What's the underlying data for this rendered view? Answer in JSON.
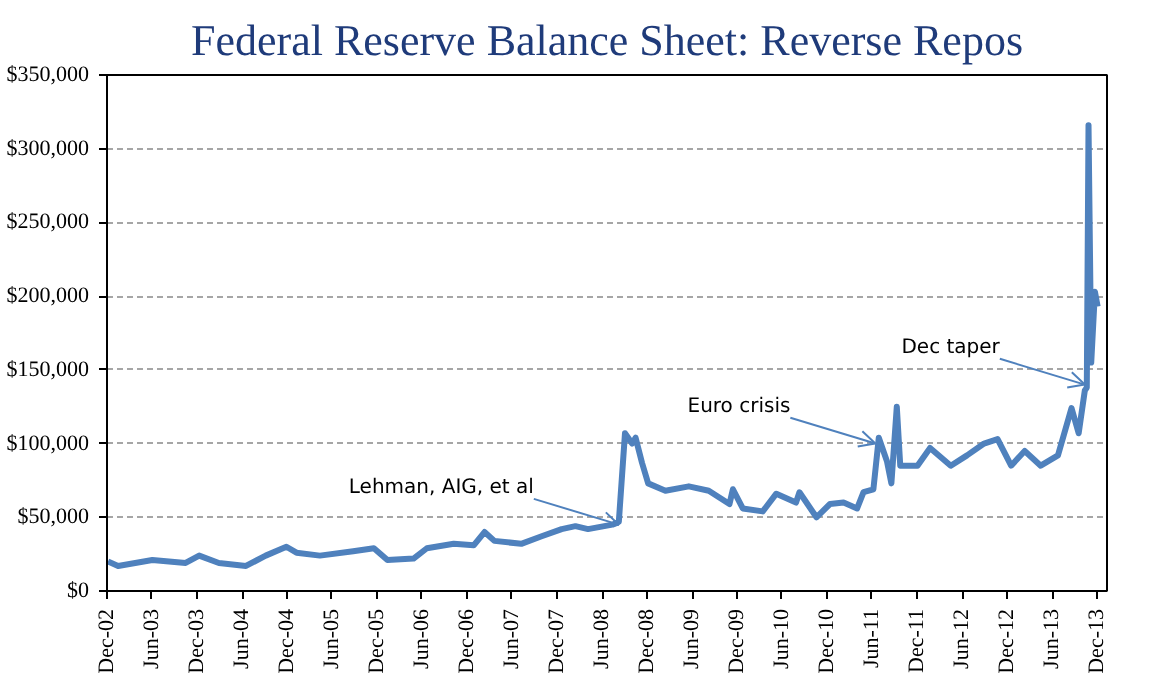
{
  "chart_data": {
    "type": "line",
    "title": "Federal Reserve Balance Sheet: Reverse Repos",
    "x": [
      "2002-12-05",
      "2003-01-15",
      "2003-06-03",
      "2003-10-16",
      "2003-12-10",
      "2004-02-28",
      "2004-06-17",
      "2004-09-05",
      "2004-11-28",
      "2005-01-08",
      "2005-04-13",
      "2005-08-26",
      "2005-11-18",
      "2006-01-12",
      "2006-04-28",
      "2006-06-21",
      "2006-10-08",
      "2006-12-28",
      "2007-02-10",
      "2007-03-22",
      "2007-07-09",
      "2007-09-27",
      "2007-12-20",
      "2008-02-14",
      "2008-04-05",
      "2008-07-13",
      "2008-08-08",
      "2008-09-02",
      "2008-10-01",
      "2008-10-15",
      "2008-11-10",
      "2008-12-05",
      "2009-02-13",
      "2009-05-19",
      "2009-08-08",
      "2009-10-31",
      "2009-11-14",
      "2009-12-24",
      "2010-03-15",
      "2010-05-09",
      "2010-07-28",
      "2010-08-11",
      "2010-10-19",
      "2010-12-13",
      "2011-02-06",
      "2011-04-02",
      "2011-04-28",
      "2011-06-07",
      "2011-06-29",
      "2011-08-01",
      "2011-08-19",
      "2011-09-10",
      "2011-09-24",
      "2011-12-03",
      "2012-01-23",
      "2012-04-16",
      "2012-06-21",
      "2012-08-29",
      "2012-10-23",
      "2012-12-17",
      "2013-02-10",
      "2013-04-16",
      "2013-06-25",
      "2013-08-19",
      "2013-09-17",
      "2013-10-12",
      "2013-10-20",
      "2013-10-27",
      "2013-11-07",
      "2013-11-22",
      "2013-12-03"
    ],
    "series": [
      {
        "color": "#4f81bd",
        "values": [
          20000,
          17000,
          21000,
          19000,
          24000,
          19000,
          17000,
          24000,
          30000,
          26000,
          24000,
          27000,
          29000,
          21000,
          22000,
          29000,
          32000,
          31000,
          40000,
          34000,
          32000,
          37000,
          42000,
          44000,
          42000,
          45000,
          47000,
          107000,
          100000,
          104000,
          87000,
          73000,
          68000,
          71000,
          68000,
          59000,
          69000,
          56000,
          54000,
          66000,
          60000,
          67000,
          50000,
          59000,
          60000,
          56000,
          67000,
          69000,
          104000,
          88000,
          73000,
          125000,
          85000,
          85000,
          97000,
          85000,
          92000,
          100000,
          103000,
          85000,
          95000,
          85000,
          92000,
          124000,
          107000,
          136000,
          138000,
          316000,
          155000,
          203000,
          193000
        ]
      }
    ],
    "xlim": [
      "2002-12-01",
      "2014-01-10"
    ],
    "xticks": [
      {
        "value": "2002-12-01",
        "label": "Dec-02"
      },
      {
        "value": "2003-06-01",
        "label": "Jun-03"
      },
      {
        "value": "2003-12-01",
        "label": "Dec-03"
      },
      {
        "value": "2004-06-01",
        "label": "Jun-04"
      },
      {
        "value": "2004-12-01",
        "label": "Dec-04"
      },
      {
        "value": "2005-06-01",
        "label": "Jun-05"
      },
      {
        "value": "2005-12-01",
        "label": "Dec-05"
      },
      {
        "value": "2006-06-01",
        "label": "Jun-06"
      },
      {
        "value": "2006-12-01",
        "label": "Dec-06"
      },
      {
        "value": "2007-06-01",
        "label": "Jun-07"
      },
      {
        "value": "2007-12-01",
        "label": "Dec-07"
      },
      {
        "value": "2008-06-01",
        "label": "Jun-08"
      },
      {
        "value": "2008-12-01",
        "label": "Dec-08"
      },
      {
        "value": "2009-06-01",
        "label": "Jun-09"
      },
      {
        "value": "2009-12-01",
        "label": "Dec-09"
      },
      {
        "value": "2010-06-01",
        "label": "Jun-10"
      },
      {
        "value": "2010-12-01",
        "label": "Dec-10"
      },
      {
        "value": "2011-06-01",
        "label": "Jun-11"
      },
      {
        "value": "2011-12-01",
        "label": "Dec-11"
      },
      {
        "value": "2012-06-01",
        "label": "Jun-12"
      },
      {
        "value": "2012-12-01",
        "label": "Dec-12"
      },
      {
        "value": "2013-06-01",
        "label": "Jun-13"
      },
      {
        "value": "2013-12-01",
        "label": "Dec-13"
      }
    ],
    "ylim": [
      0,
      350000
    ],
    "yticks": [
      {
        "value": 0,
        "label": "$0"
      },
      {
        "value": 50000,
        "label": "$50,000"
      },
      {
        "value": 100000,
        "label": "$100,000"
      },
      {
        "value": 150000,
        "label": "$150,000"
      },
      {
        "value": 200000,
        "label": "$200,000"
      },
      {
        "value": 250000,
        "label": "$250,000"
      },
      {
        "value": 300000,
        "label": "$300,000"
      },
      {
        "value": 350000,
        "label": "$350,000"
      }
    ],
    "grid": "y",
    "annotations": [
      {
        "text": "Lehman, AIG, et al",
        "x": "2008-08-08",
        "y": 45000
      },
      {
        "text": "Euro crisis",
        "x": "2011-06-15",
        "y": 100000
      },
      {
        "text": "Dec taper",
        "x": "2013-10-12",
        "y": 140000
      }
    ]
  }
}
